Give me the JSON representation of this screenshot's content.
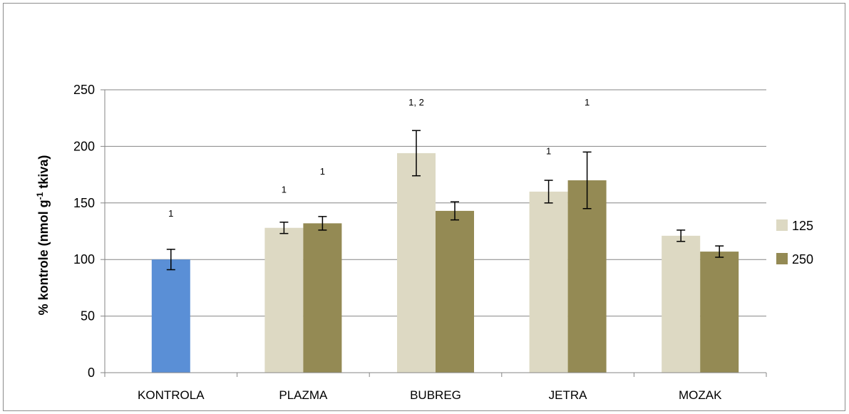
{
  "chart_data": {
    "type": "bar",
    "title": "",
    "xlabel": "",
    "ylabel": {
      "main": "% kontrole (nmol g",
      "sup": "-1",
      "tail": " tkiva)"
    },
    "ylim": [
      0,
      250
    ],
    "yticks": [
      0,
      50,
      100,
      150,
      200,
      250
    ],
    "grid": true,
    "categories": [
      "KONTROLA",
      "PLAZMA",
      "BUBREG",
      "JETRA",
      "MOZAK"
    ],
    "control": {
      "category": "KONTROLA",
      "value": 100,
      "error": 9,
      "annotation": "1",
      "annotation_value": 138,
      "color": "#5a8fd6"
    },
    "series": [
      {
        "name": "125",
        "color": "#ddd9c3",
        "values": [
          null,
          128,
          194,
          160,
          121
        ],
        "errors": [
          null,
          5,
          20,
          10,
          5
        ],
        "annotations": [
          null,
          "1",
          "1, 2",
          "1",
          null
        ],
        "annotation_values": [
          null,
          159,
          236,
          193,
          null
        ]
      },
      {
        "name": "250",
        "color": "#948a54",
        "values": [
          null,
          132,
          143,
          170,
          107
        ],
        "errors": [
          null,
          6,
          8,
          25,
          5
        ],
        "annotations": [
          null,
          "1",
          null,
          "1",
          null
        ],
        "annotation_values": [
          null,
          175,
          null,
          236,
          null
        ]
      }
    ],
    "legend": {
      "position": "right",
      "items": [
        "125",
        "250"
      ]
    },
    "colors": {
      "grid": "#868686",
      "axis": "#868686",
      "error_bar": "#000000"
    }
  }
}
